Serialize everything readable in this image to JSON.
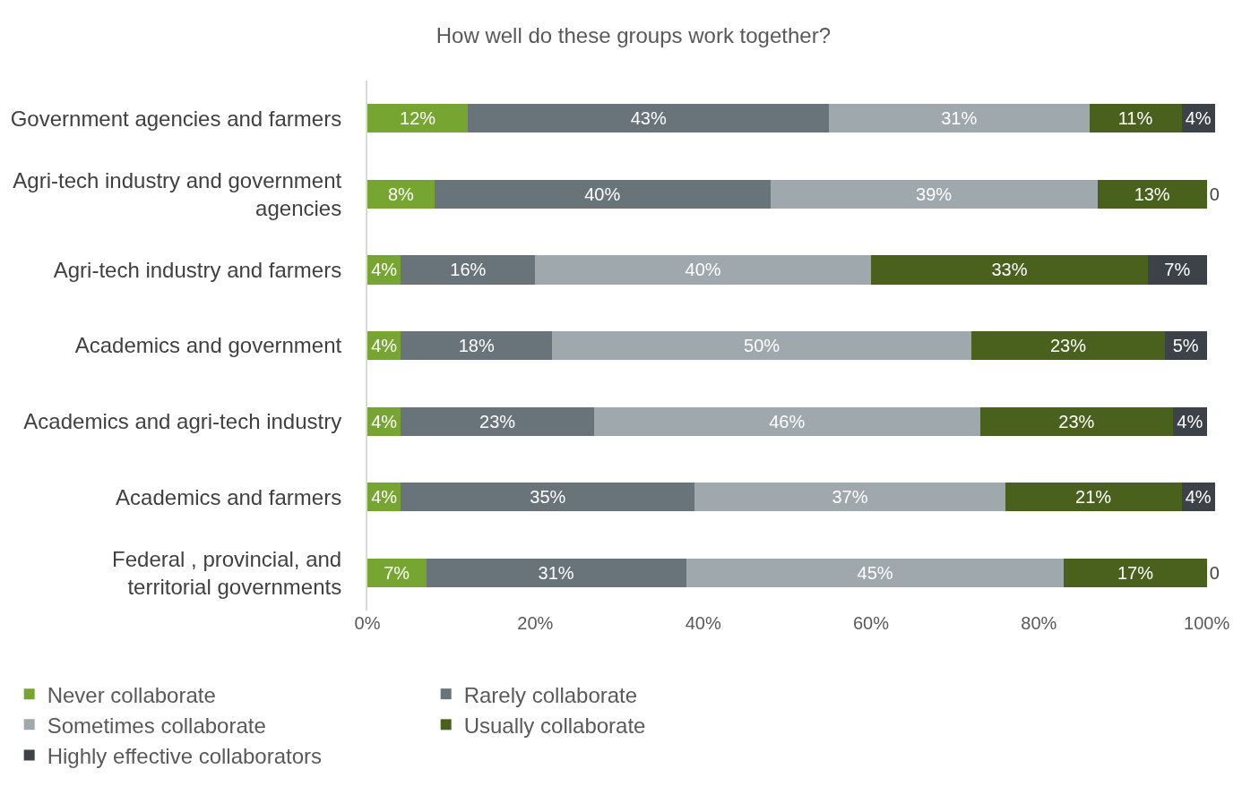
{
  "chart_data": {
    "type": "bar",
    "orientation": "horizontal",
    "stacked": true,
    "title": "How well do these groups work together?",
    "categories": [
      "Government agencies and farmers",
      "Agri-tech industry and government agencies",
      "Agri-tech industry and farmers",
      "Academics and government",
      "Academics and agri-tech industry",
      "Academics and farmers",
      "Federal , provincial, and territorial governments"
    ],
    "series": [
      {
        "name": "Never collaborate",
        "color": "#76a532",
        "values": [
          12,
          8,
          4,
          4,
          4,
          4,
          7
        ],
        "value_labels": [
          "12%",
          "8%",
          "4%",
          "4%",
          "4%",
          "4%",
          "7%"
        ]
      },
      {
        "name": "Rarely collaborate",
        "color": "#68747a",
        "values": [
          43,
          40,
          16,
          18,
          23,
          35,
          31
        ],
        "value_labels": [
          "43%",
          "40%",
          "16%",
          "18%",
          "23%",
          "35%",
          "31%"
        ]
      },
      {
        "name": "Sometimes collaborate",
        "color": "#9fa8ad",
        "values": [
          31,
          39,
          40,
          50,
          46,
          37,
          45
        ],
        "value_labels": [
          "31%",
          "39%",
          "40%",
          "50%",
          "46%",
          "37%",
          "45%"
        ]
      },
      {
        "name": "Usually collaborate",
        "color": "#4a611e",
        "values": [
          11,
          13,
          33,
          23,
          23,
          21,
          17
        ],
        "value_labels": [
          "11%",
          "13%",
          "33%",
          "23%",
          "23%",
          "21%",
          "17%"
        ]
      },
      {
        "name": "Highly effective collaborators",
        "color": "#3c4247",
        "values": [
          4,
          0,
          7,
          5,
          4,
          4,
          0
        ],
        "value_labels": [
          "4%",
          "0",
          "7%",
          "5%",
          "4%",
          "4%",
          "0"
        ]
      }
    ],
    "xlim": [
      0,
      101
    ],
    "xticks": [
      {
        "value": 0,
        "label": "0%"
      },
      {
        "value": 20,
        "label": "20%"
      },
      {
        "value": 40,
        "label": "40%"
      },
      {
        "value": 60,
        "label": "60%"
      },
      {
        "value": 80,
        "label": "80%"
      },
      {
        "value": 100,
        "label": "100%"
      }
    ],
    "grid": false,
    "legend": "bottom"
  }
}
